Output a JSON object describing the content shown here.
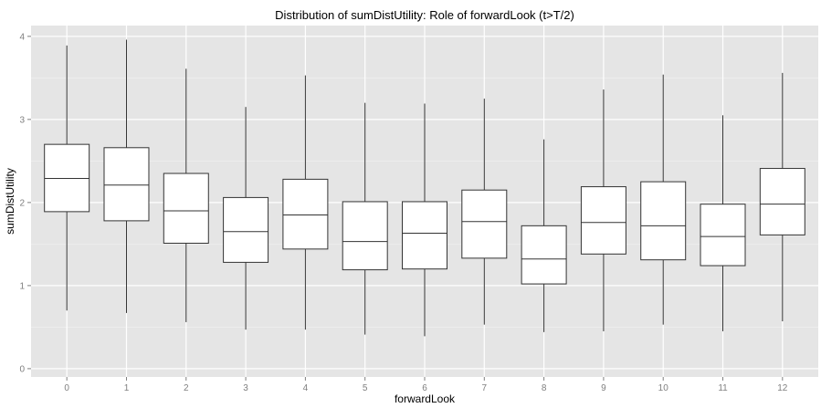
{
  "chart_data": {
    "type": "boxplot",
    "title": "Distribution of sumDistUtility: Role of forwardLook (t>T/2)",
    "xlabel": "forwardLook",
    "ylabel": "sumDistUtility",
    "ylim": [
      -0.1,
      4.13
    ],
    "y_ticks": [
      "0",
      "1",
      "2",
      "3",
      "4"
    ],
    "categories": [
      "0",
      "1",
      "2",
      "3",
      "4",
      "5",
      "6",
      "7",
      "8",
      "9",
      "10",
      "11",
      "12"
    ],
    "boxes": [
      {
        "x": "0",
        "whisker_low": 0.7,
        "q1": 1.89,
        "median": 2.29,
        "q3": 2.7,
        "whisker_high": 3.89
      },
      {
        "x": "1",
        "whisker_low": 0.67,
        "q1": 1.78,
        "median": 2.21,
        "q3": 2.66,
        "whisker_high": 3.96
      },
      {
        "x": "2",
        "whisker_low": 0.56,
        "q1": 1.51,
        "median": 1.9,
        "q3": 2.35,
        "whisker_high": 3.61
      },
      {
        "x": "3",
        "whisker_low": 0.47,
        "q1": 1.28,
        "median": 1.65,
        "q3": 2.06,
        "whisker_high": 3.15
      },
      {
        "x": "4",
        "whisker_low": 0.47,
        "q1": 1.44,
        "median": 1.85,
        "q3": 2.28,
        "whisker_high": 3.53
      },
      {
        "x": "5",
        "whisker_low": 0.41,
        "q1": 1.19,
        "median": 1.53,
        "q3": 2.01,
        "whisker_high": 3.2
      },
      {
        "x": "6",
        "whisker_low": 0.39,
        "q1": 1.2,
        "median": 1.63,
        "q3": 2.01,
        "whisker_high": 3.19
      },
      {
        "x": "7",
        "whisker_low": 0.53,
        "q1": 1.33,
        "median": 1.77,
        "q3": 2.15,
        "whisker_high": 3.25
      },
      {
        "x": "8",
        "whisker_low": 0.44,
        "q1": 1.02,
        "median": 1.32,
        "q3": 1.72,
        "whisker_high": 2.76
      },
      {
        "x": "9",
        "whisker_low": 0.45,
        "q1": 1.38,
        "median": 1.76,
        "q3": 2.19,
        "whisker_high": 3.36
      },
      {
        "x": "10",
        "whisker_low": 0.53,
        "q1": 1.31,
        "median": 1.72,
        "q3": 2.25,
        "whisker_high": 3.54
      },
      {
        "x": "11",
        "whisker_low": 0.45,
        "q1": 1.24,
        "median": 1.59,
        "q3": 1.98,
        "whisker_high": 3.05
      },
      {
        "x": "12",
        "whisker_low": 0.57,
        "q1": 1.61,
        "median": 1.98,
        "q3": 2.41,
        "whisker_high": 3.56
      }
    ],
    "grid": true,
    "colors": {
      "panel_background": "#E5E5E5",
      "grid_major": "#FFFFFF",
      "grid_minor": "#F2F2F2",
      "box_fill": "#FFFFFF",
      "box_stroke": "#333333",
      "tick_label": "#7F7F7F"
    }
  }
}
